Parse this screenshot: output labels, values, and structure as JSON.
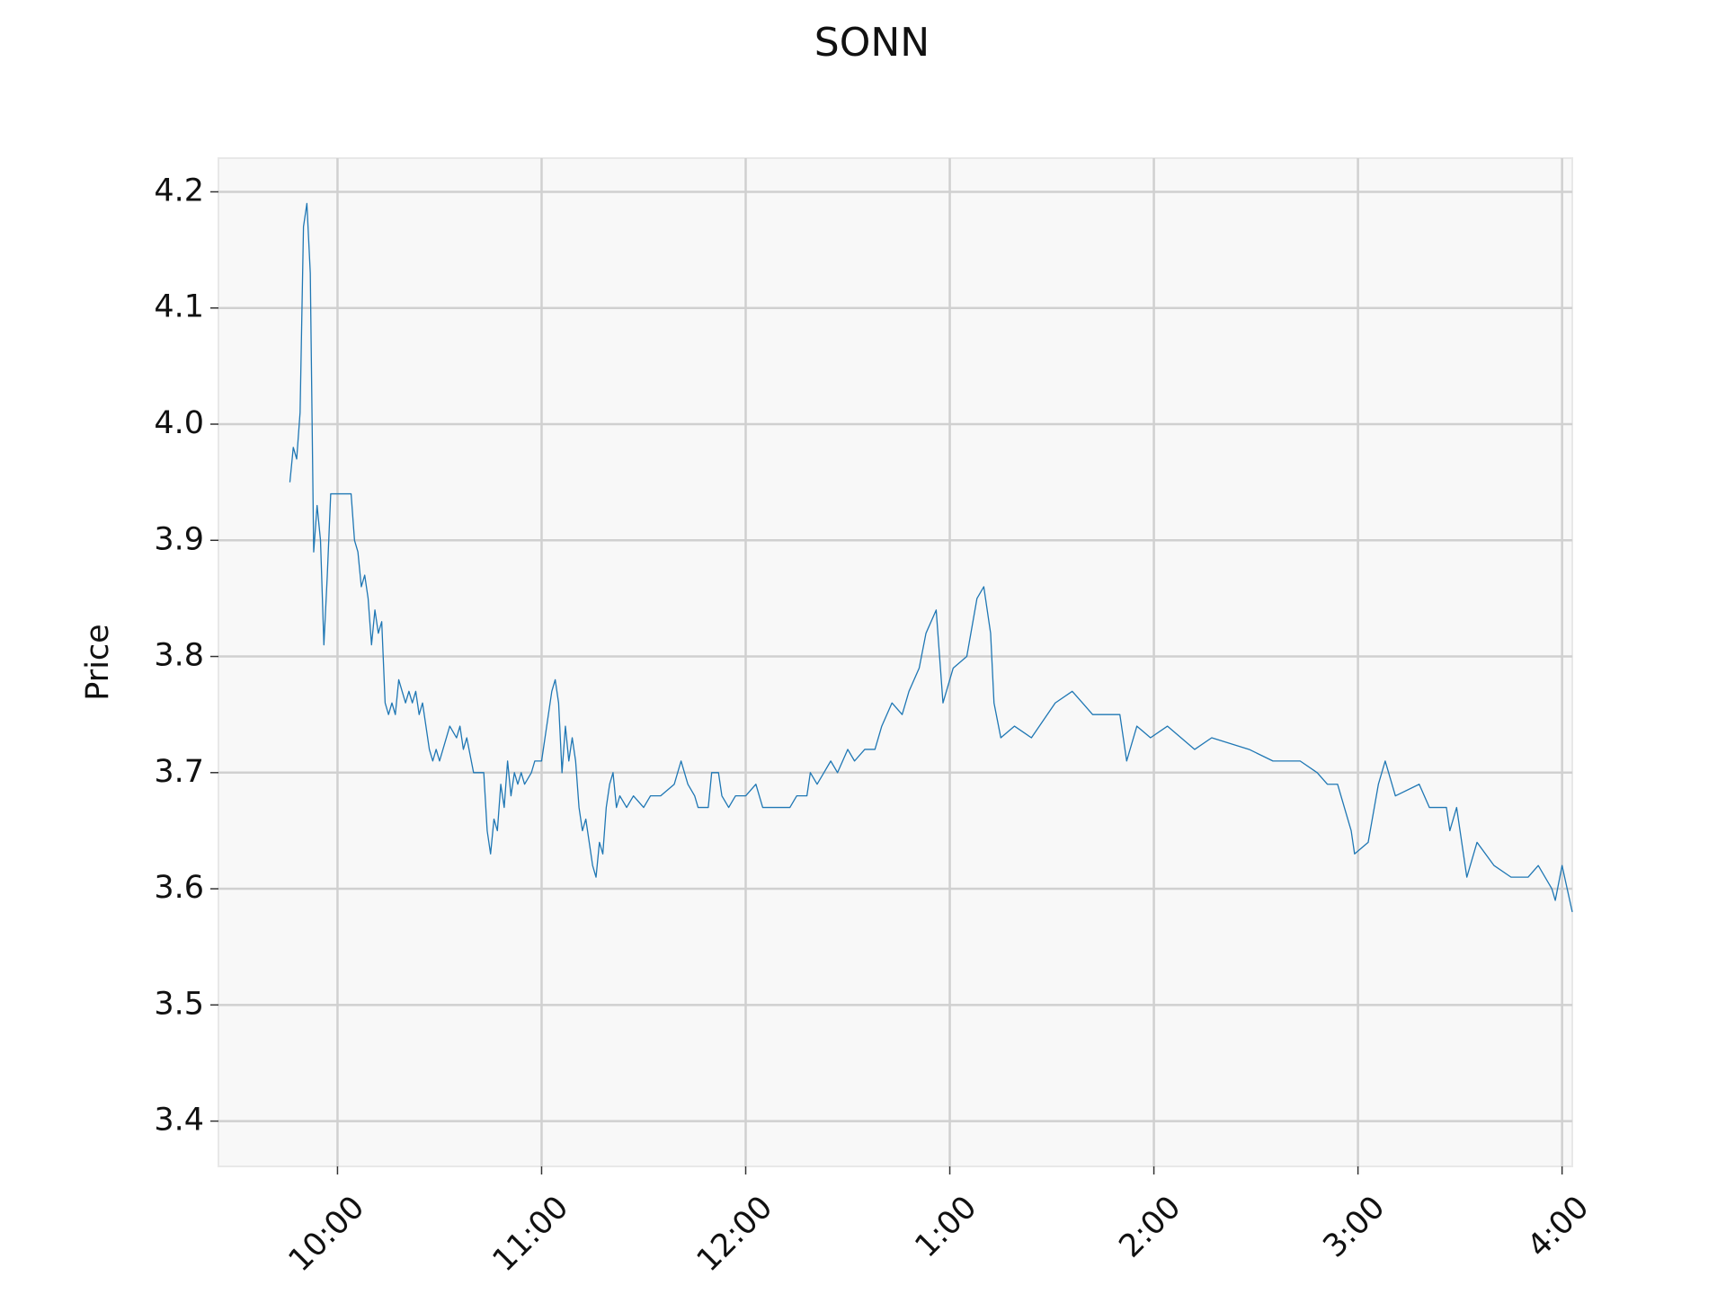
{
  "chart_data": {
    "type": "line",
    "title": "SONN",
    "y_label": "Price",
    "color": "#1f77b4",
    "grid": true,
    "xlim": [
      565,
      963
    ],
    "ylim": [
      3.361,
      4.229
    ],
    "xticks": [
      {
        "value": 600,
        "label": "10:00"
      },
      {
        "value": 660,
        "label": "11:00"
      },
      {
        "value": 720,
        "label": "12:00"
      },
      {
        "value": 780,
        "label": "1:00"
      },
      {
        "value": 840,
        "label": "2:00"
      },
      {
        "value": 900,
        "label": "3:00"
      },
      {
        "value": 960,
        "label": "4:00"
      }
    ],
    "yticks": [
      3.4,
      3.5,
      3.6,
      3.7,
      3.8,
      3.9,
      {
        "value": 4,
        "label": "4.0"
      },
      4.1,
      4.2
    ],
    "x": [
      586,
      587,
      588,
      589,
      590,
      591,
      592,
      593,
      594,
      595,
      596,
      597,
      598,
      604,
      605,
      606,
      607,
      608,
      609,
      610,
      611,
      612,
      613,
      614,
      615,
      616,
      617,
      618,
      619,
      620,
      621,
      622,
      623,
      624,
      625,
      627,
      628,
      629,
      630,
      632,
      633,
      635,
      636,
      637,
      638,
      640,
      643,
      644,
      645,
      646,
      647,
      648,
      649,
      650,
      651,
      652,
      653,
      654,
      655,
      657,
      658,
      660,
      661,
      662,
      663,
      664,
      665,
      666,
      667,
      668,
      669,
      670,
      671,
      672,
      673,
      675,
      676,
      677,
      678,
      679,
      680,
      681,
      682,
      683,
      685,
      687,
      690,
      692,
      695,
      699,
      701,
      702,
      703,
      705,
      706,
      709,
      710,
      712,
      713,
      715,
      717,
      720,
      723,
      724,
      725,
      733,
      735,
      738,
      739,
      741,
      743,
      745,
      747,
      750,
      752,
      755,
      758,
      760,
      763,
      766,
      768,
      771,
      773,
      776,
      778,
      781,
      785,
      788,
      790,
      792,
      793,
      795,
      799,
      804,
      811,
      816,
      819,
      822,
      830,
      832,
      835,
      839,
      844,
      852,
      857,
      868,
      875,
      883,
      888,
      891,
      894,
      898,
      899,
      903,
      906,
      908,
      911,
      918,
      921,
      926,
      927,
      929,
      932,
      935,
      940,
      945,
      950,
      953,
      957,
      958,
      960,
      963
    ],
    "values": [
      3.95,
      3.98,
      3.97,
      4.01,
      4.17,
      4.19,
      4.13,
      3.89,
      3.93,
      3.9,
      3.81,
      3.87,
      3.94,
      3.94,
      3.9,
      3.89,
      3.86,
      3.87,
      3.85,
      3.81,
      3.84,
      3.82,
      3.83,
      3.76,
      3.75,
      3.76,
      3.75,
      3.78,
      3.77,
      3.76,
      3.77,
      3.76,
      3.77,
      3.75,
      3.76,
      3.72,
      3.71,
      3.72,
      3.71,
      3.73,
      3.74,
      3.73,
      3.74,
      3.72,
      3.73,
      3.7,
      3.7,
      3.65,
      3.63,
      3.66,
      3.65,
      3.69,
      3.67,
      3.71,
      3.68,
      3.7,
      3.69,
      3.7,
      3.69,
      3.7,
      3.71,
      3.71,
      3.73,
      3.75,
      3.77,
      3.78,
      3.76,
      3.7,
      3.74,
      3.71,
      3.73,
      3.71,
      3.67,
      3.65,
      3.66,
      3.62,
      3.61,
      3.64,
      3.63,
      3.67,
      3.69,
      3.7,
      3.67,
      3.68,
      3.67,
      3.68,
      3.67,
      3.68,
      3.68,
      3.69,
      3.71,
      3.7,
      3.69,
      3.68,
      3.67,
      3.67,
      3.7,
      3.7,
      3.68,
      3.67,
      3.68,
      3.68,
      3.69,
      3.68,
      3.67,
      3.67,
      3.68,
      3.68,
      3.7,
      3.69,
      3.7,
      3.71,
      3.7,
      3.72,
      3.71,
      3.72,
      3.72,
      3.74,
      3.76,
      3.75,
      3.77,
      3.79,
      3.82,
      3.84,
      3.76,
      3.79,
      3.8,
      3.85,
      3.86,
      3.82,
      3.76,
      3.73,
      3.74,
      3.73,
      3.76,
      3.77,
      3.76,
      3.75,
      3.75,
      3.71,
      3.74,
      3.73,
      3.74,
      3.72,
      3.73,
      3.72,
      3.71,
      3.71,
      3.7,
      3.69,
      3.69,
      3.65,
      3.63,
      3.64,
      3.69,
      3.71,
      3.68,
      3.69,
      3.67,
      3.67,
      3.65,
      3.67,
      3.61,
      3.64,
      3.62,
      3.61,
      3.61,
      3.62,
      3.6,
      3.59,
      3.62,
      3.58
    ]
  }
}
